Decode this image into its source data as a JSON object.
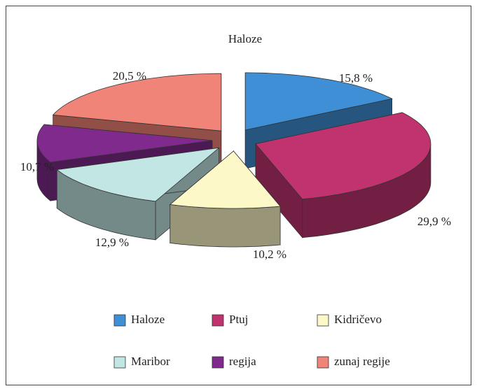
{
  "chart_data": {
    "type": "pie3d",
    "title": "Haloze",
    "categories": [
      "Haloze",
      "Ptuj",
      "Kidričevo",
      "Maribor",
      "regija",
      "zunaj regije"
    ],
    "values": [
      15.8,
      29.9,
      10.2,
      12.9,
      10.7,
      20.5
    ],
    "value_labels": [
      "15,8 %",
      "29,9 %",
      "10,2 %",
      "12,9 %",
      "10,7 %",
      "20,5 %"
    ],
    "colors": [
      "#3f8fd6",
      "#c0336f",
      "#fdf8c8",
      "#c2e6e4",
      "#7f2a8c",
      "#f18478"
    ],
    "legend": "bottom"
  }
}
